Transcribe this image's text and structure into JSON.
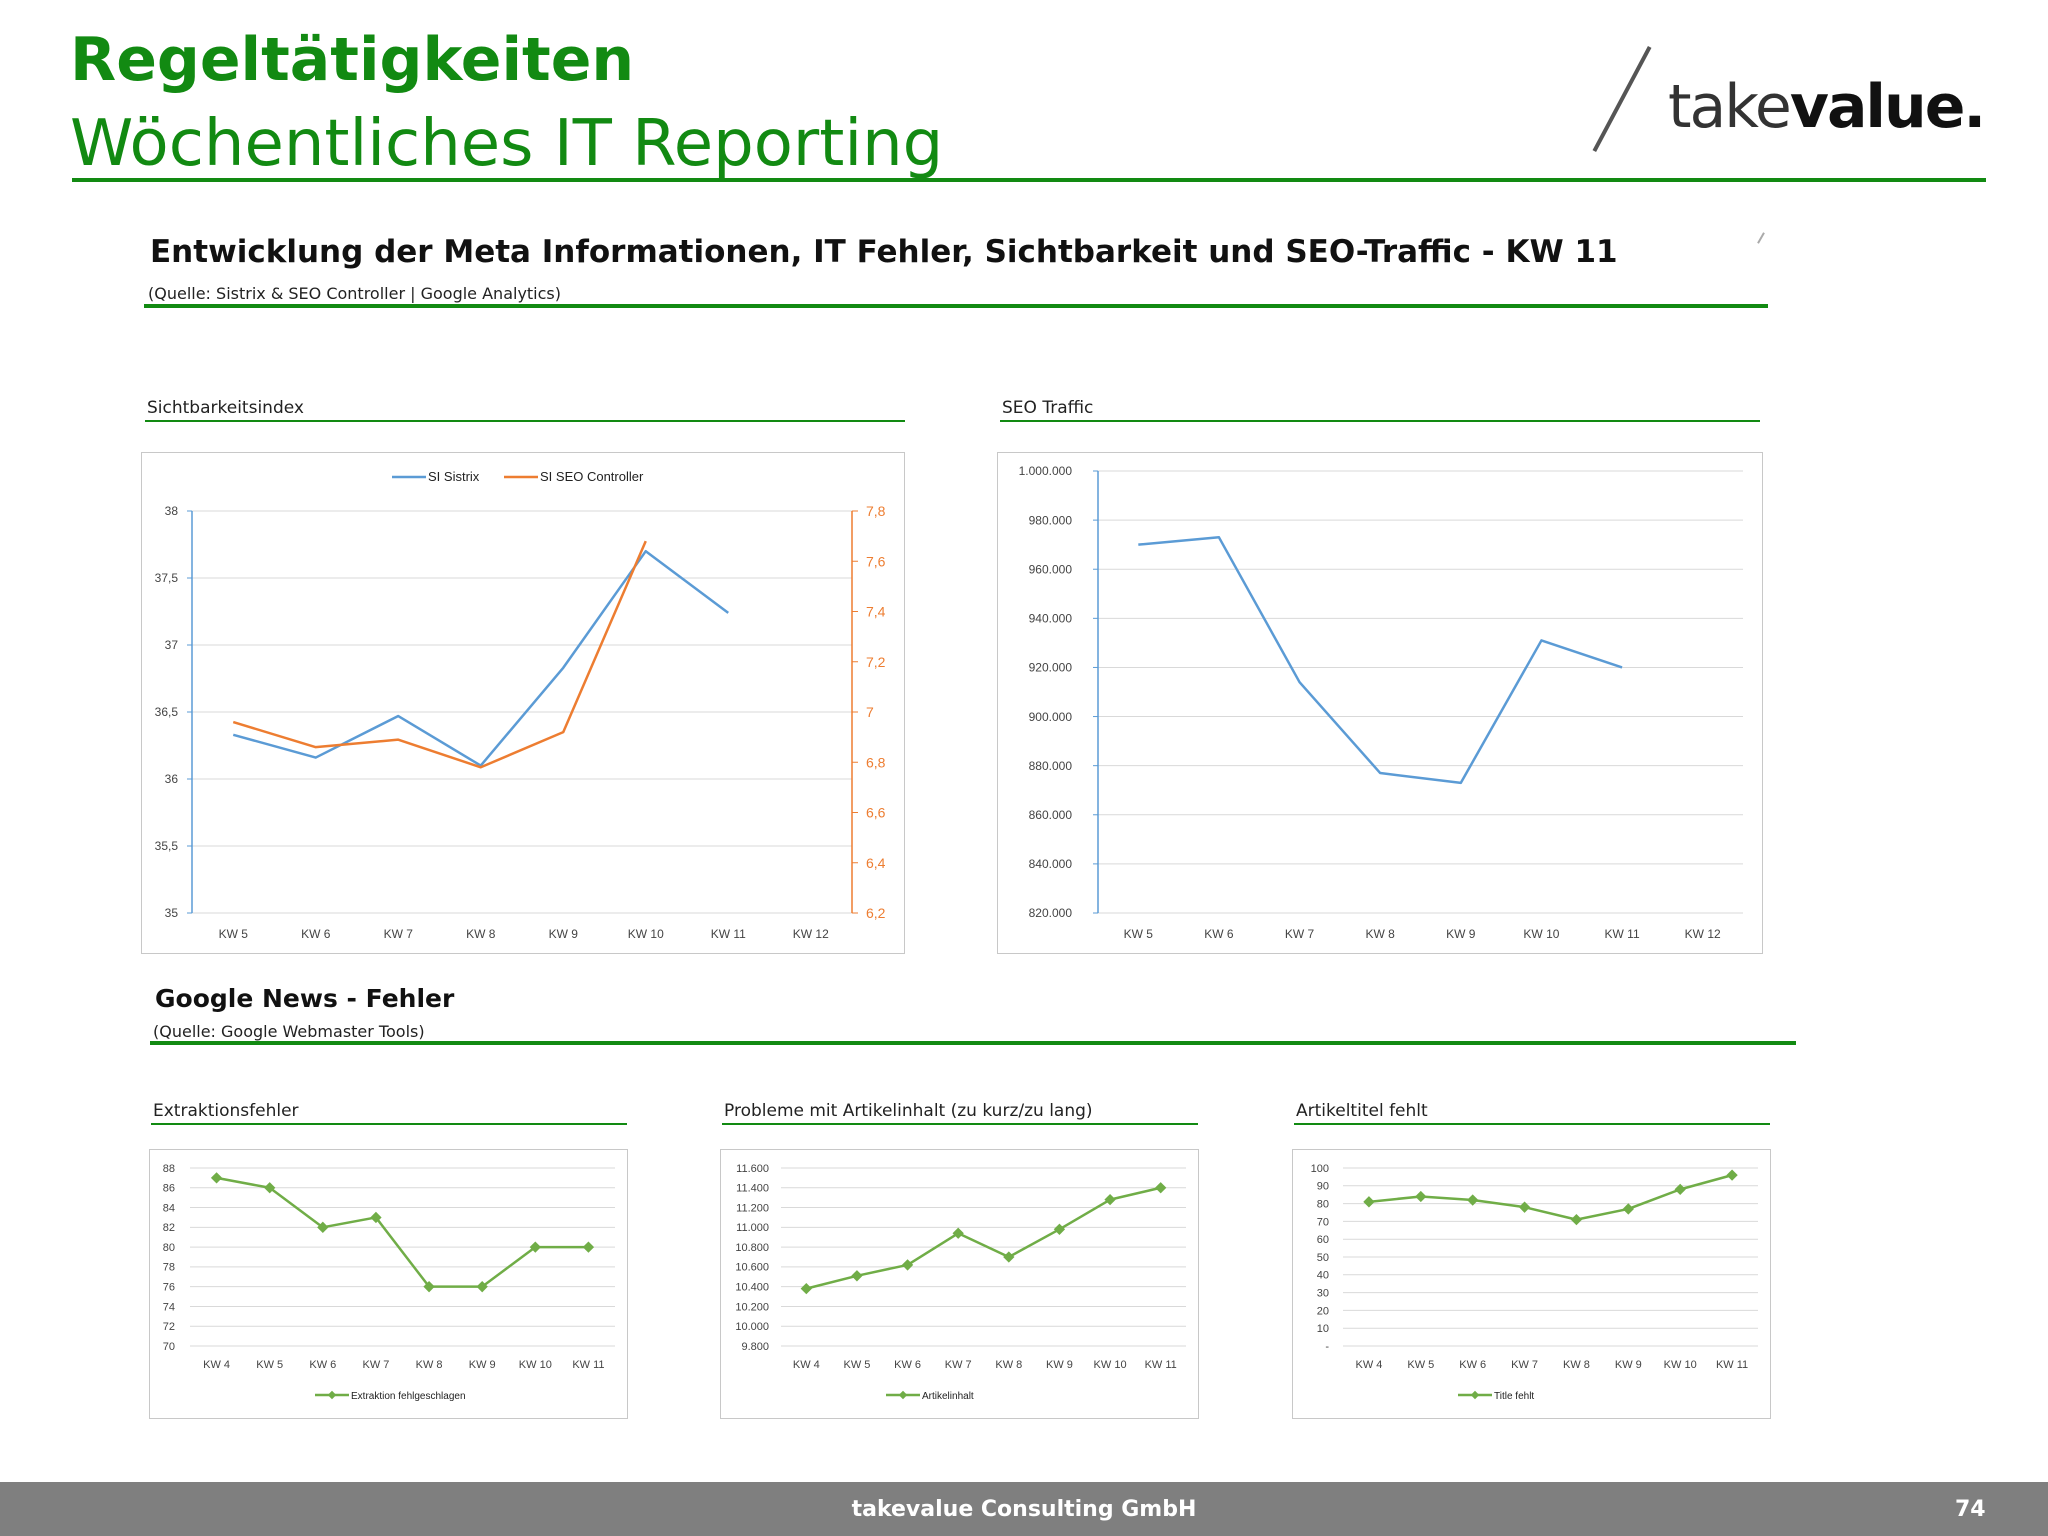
{
  "header": {
    "title": "Regeltätigkeiten",
    "subtitle": "Wöchentliches IT Reporting",
    "logo_light": "take",
    "logo_bold": "value."
  },
  "section1": {
    "title": "Entwicklung der Meta Informationen, IT Fehler, Sichtbarkeit und SEO-Traffic - KW 11",
    "source": "(Quelle: Sistrix & SEO Controller | Google Analytics)"
  },
  "section2": {
    "title": "Google News - Fehler",
    "source": "(Quelle: Google Webmaster Tools)"
  },
  "footer": {
    "company": "takevalue Consulting GmbH",
    "page": "74"
  },
  "colors": {
    "brand_green": "#128a12",
    "sistrix_blue": "#5b9bd5",
    "seo_controller_orange": "#ed7d31",
    "series_green": "#70ad47"
  },
  "chart_data": [
    {
      "id": "sichtbarkeit",
      "label": "Sichtbarkeitsindex",
      "type": "line",
      "categories": [
        "KW 5",
        "KW 6",
        "KW 7",
        "KW 8",
        "KW 9",
        "KW 10",
        "KW 11",
        "KW 12"
      ],
      "series": [
        {
          "name": "SI Sistrix",
          "axis": "left",
          "values": [
            36.33,
            36.16,
            36.47,
            36.1,
            36.83,
            37.7,
            37.24,
            null
          ]
        },
        {
          "name": "SI SEO Controller",
          "axis": "right",
          "values": [
            6.96,
            6.86,
            6.89,
            6.78,
            6.92,
            7.68,
            null,
            null
          ]
        }
      ],
      "ylim": [
        35,
        38
      ],
      "yticks": [
        "35",
        "35,5",
        "36",
        "36,5",
        "37",
        "37,5",
        "38"
      ],
      "y2lim": [
        6.2,
        7.8
      ],
      "y2ticks": [
        "6,2",
        "6,4",
        "6,6",
        "6,8",
        "7",
        "7,2",
        "7,4",
        "7,6",
        "7,8"
      ],
      "legend": "top",
      "grid": true
    },
    {
      "id": "seotraffic",
      "label": "SEO Traffic",
      "type": "line",
      "categories": [
        "KW 5",
        "KW 6",
        "KW 7",
        "KW 8",
        "KW 9",
        "KW 10",
        "KW 11",
        "KW 12"
      ],
      "series": [
        {
          "values": [
            970000,
            973000,
            914000,
            877000,
            873000,
            931000,
            920000,
            null
          ]
        }
      ],
      "ylim": [
        820000,
        1000000
      ],
      "yticks": [
        "820.000",
        "840.000",
        "860.000",
        "880.000",
        "900.000",
        "920.000",
        "940.000",
        "960.000",
        "980.000",
        "1.000.000"
      ],
      "grid": true
    },
    {
      "id": "extraktion",
      "label": "Extraktionsfehler",
      "type": "line",
      "categories": [
        "KW 4",
        "KW 5",
        "KW 6",
        "KW 7",
        "KW 8",
        "KW 9",
        "KW 10",
        "KW 11"
      ],
      "series": [
        {
          "name": "Extraktion fehlgeschlagen",
          "values": [
            87,
            86,
            82,
            83,
            76,
            76,
            80,
            80
          ]
        }
      ],
      "ylim": [
        70,
        88
      ],
      "yticks": [
        "70",
        "72",
        "74",
        "76",
        "78",
        "80",
        "82",
        "84",
        "86",
        "88"
      ],
      "legend": "bottom",
      "grid": true
    },
    {
      "id": "artikelinhalt",
      "label": "Probleme mit Artikelinhalt (zu kurz/zu lang)",
      "type": "line",
      "categories": [
        "KW 4",
        "KW 5",
        "KW 6",
        "KW 7",
        "KW 8",
        "KW 9",
        "KW 10",
        "KW 11"
      ],
      "series": [
        {
          "name": "Artikelinhalt",
          "values": [
            10380,
            10510,
            10620,
            10940,
            10700,
            10980,
            11280,
            11400
          ]
        }
      ],
      "ylim": [
        9800,
        11600
      ],
      "yticks": [
        "9.800",
        "10.000",
        "10.200",
        "10.400",
        "10.600",
        "10.800",
        "11.000",
        "11.200",
        "11.400",
        "11.600"
      ],
      "legend": "bottom",
      "grid": true
    },
    {
      "id": "artikeltitel",
      "label": "Artikeltitel fehlt",
      "type": "line",
      "categories": [
        "KW 4",
        "KW 5",
        "KW 6",
        "KW 7",
        "KW 8",
        "KW 9",
        "KW 10",
        "KW 11"
      ],
      "series": [
        {
          "name": "Title fehlt",
          "values": [
            81,
            84,
            82,
            78,
            71,
            77,
            88,
            96
          ]
        }
      ],
      "ylim": [
        0,
        100
      ],
      "yticks": [
        "-",
        "10",
        "20",
        "30",
        "40",
        "50",
        "60",
        "70",
        "80",
        "90",
        "100"
      ],
      "legend": "bottom",
      "grid": true
    }
  ]
}
